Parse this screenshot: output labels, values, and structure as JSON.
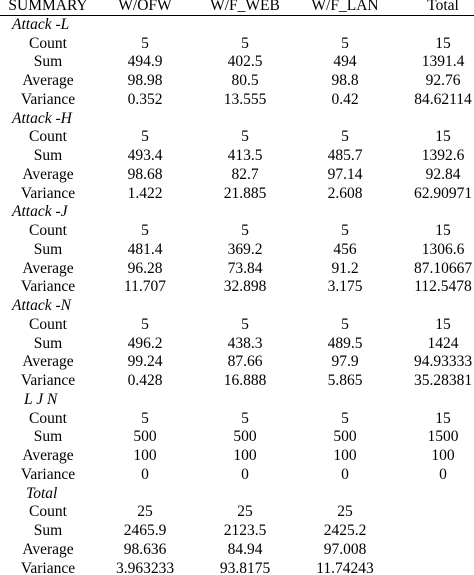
{
  "table": {
    "header": [
      "SUMMARY",
      "W/OFW",
      "W/F_WEB",
      "W/F_LAN",
      "Total"
    ],
    "groups": [
      {
        "title": "Attack -L",
        "rows": [
          {
            "label": "Count",
            "values": [
              5,
              5,
              5,
              15
            ]
          },
          {
            "label": "Sum",
            "values": [
              494.9,
              402.5,
              494,
              1391.4
            ]
          },
          {
            "label": "Average",
            "values": [
              98.98,
              80.5,
              98.8,
              92.76
            ]
          },
          {
            "label": "Variance",
            "values": [
              0.352,
              13.555,
              0.42,
              84.62114
            ]
          }
        ]
      },
      {
        "title": "Attack -H",
        "rows": [
          {
            "label": "Count",
            "values": [
              5,
              5,
              5,
              15
            ]
          },
          {
            "label": "Sum",
            "values": [
              493.4,
              413.5,
              485.7,
              1392.6
            ]
          },
          {
            "label": "Average",
            "values": [
              98.68,
              82.7,
              97.14,
              92.84
            ]
          },
          {
            "label": "Variance",
            "values": [
              1.422,
              21.885,
              2.608,
              62.90971
            ]
          }
        ]
      },
      {
        "title": "Attack -J",
        "rows": [
          {
            "label": "Count",
            "values": [
              5,
              5,
              5,
              15
            ]
          },
          {
            "label": "Sum",
            "values": [
              481.4,
              369.2,
              456,
              1306.6
            ]
          },
          {
            "label": "Average",
            "values": [
              96.28,
              73.84,
              91.2,
              87.10667
            ]
          },
          {
            "label": "Variance",
            "values": [
              11.707,
              32.898,
              3.175,
              112.5478
            ]
          }
        ]
      },
      {
        "title": "Attack -N",
        "rows": [
          {
            "label": "Count",
            "values": [
              5,
              5,
              5,
              15
            ]
          },
          {
            "label": "Sum",
            "values": [
              496.2,
              438.3,
              489.5,
              1424
            ]
          },
          {
            "label": "Average",
            "values": [
              99.24,
              87.66,
              97.9,
              94.93333
            ]
          },
          {
            "label": "Variance",
            "values": [
              0.428,
              16.888,
              5.865,
              35.28381
            ]
          }
        ]
      },
      {
        "title": "L J N",
        "rows": [
          {
            "label": "Count",
            "values": [
              5,
              5,
              5,
              15
            ]
          },
          {
            "label": "Sum",
            "values": [
              500,
              500,
              500,
              1500
            ]
          },
          {
            "label": "Average",
            "values": [
              100,
              100,
              100,
              100
            ]
          },
          {
            "label": "Variance",
            "values": [
              0,
              0,
              0,
              0
            ]
          }
        ]
      },
      {
        "title": "Total",
        "rows": [
          {
            "label": "Count",
            "values": [
              25,
              25,
              25
            ]
          },
          {
            "label": "Sum",
            "values": [
              2465.9,
              2123.5,
              2425.2
            ]
          },
          {
            "label": "Average",
            "values": [
              98.636,
              84.94,
              97.008
            ]
          },
          {
            "label": "Variance",
            "values": [
              3.963233,
              93.8175,
              11.74243
            ]
          }
        ]
      }
    ]
  }
}
